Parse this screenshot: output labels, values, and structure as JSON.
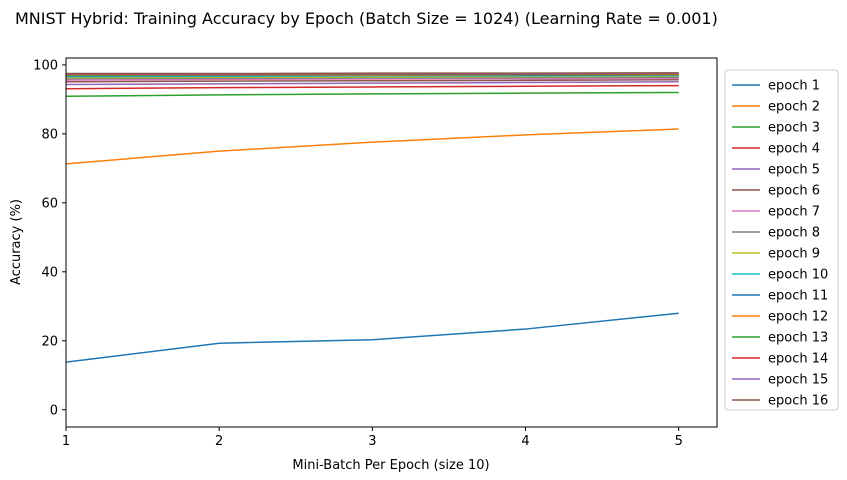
{
  "chart_data": {
    "type": "line",
    "title": "MNIST Hybrid: Training Accuracy by Epoch (Batch Size = 1024) (Learning Rate = 0.001)",
    "xlabel": "Mini-Batch Per Epoch (size 10)",
    "ylabel": "Accuracy (%)",
    "xlim": [
      1,
      5.25
    ],
    "ylim": [
      -5,
      102
    ],
    "x_ticks": [
      1,
      2,
      3,
      4,
      5
    ],
    "y_ticks": [
      0,
      20,
      40,
      60,
      80,
      100
    ],
    "grid": false,
    "legend_position": "outside-right",
    "x": [
      1,
      2,
      3,
      4,
      5
    ],
    "series": [
      {
        "name": "epoch 1",
        "color": "#1f77b4",
        "values": [
          13.8,
          19.3,
          20.3,
          23.4,
          28.0
        ]
      },
      {
        "name": "epoch 2",
        "color": "#ff7f0e",
        "values": [
          71.3,
          75.0,
          77.6,
          79.7,
          81.4
        ]
      },
      {
        "name": "epoch 3",
        "color": "#2ca02c",
        "values": [
          90.9,
          91.3,
          91.6,
          91.8,
          92.0
        ]
      },
      {
        "name": "epoch 4",
        "color": "#d62728",
        "values": [
          93.1,
          93.4,
          93.6,
          93.8,
          94.0
        ]
      },
      {
        "name": "epoch 5",
        "color": "#9467bd",
        "values": [
          94.3,
          94.5,
          94.7,
          94.9,
          95.1
        ]
      },
      {
        "name": "epoch 6",
        "color": "#8c564b",
        "values": [
          95.1,
          95.3,
          95.4,
          95.5,
          95.7
        ]
      },
      {
        "name": "epoch 7",
        "color": "#e377c2",
        "values": [
          95.6,
          95.8,
          95.9,
          96.0,
          96.1
        ]
      },
      {
        "name": "epoch 8",
        "color": "#7f7f7f",
        "values": [
          96.0,
          96.1,
          96.2,
          96.3,
          96.4
        ]
      },
      {
        "name": "epoch 9",
        "color": "#bcbd22",
        "values": [
          96.3,
          96.4,
          96.5,
          96.6,
          96.7
        ]
      },
      {
        "name": "epoch 10",
        "color": "#17becf",
        "values": [
          96.6,
          96.7,
          96.8,
          96.8,
          96.9
        ]
      },
      {
        "name": "epoch 11",
        "color": "#1f77b4",
        "values": [
          96.8,
          96.9,
          97.0,
          97.0,
          97.1
        ]
      },
      {
        "name": "epoch 12",
        "color": "#ff7f0e",
        "values": [
          97.0,
          97.1,
          97.1,
          97.2,
          97.2
        ]
      },
      {
        "name": "epoch 13",
        "color": "#2ca02c",
        "values": [
          97.1,
          97.2,
          97.3,
          97.3,
          97.4
        ]
      },
      {
        "name": "epoch 14",
        "color": "#d62728",
        "values": [
          97.3,
          97.3,
          97.4,
          97.4,
          97.5
        ]
      },
      {
        "name": "epoch 15",
        "color": "#9467bd",
        "values": [
          97.4,
          97.4,
          97.5,
          97.5,
          97.6
        ]
      },
      {
        "name": "epoch 16",
        "color": "#8c564b",
        "values": [
          97.5,
          97.5,
          97.6,
          97.6,
          97.7
        ]
      }
    ]
  }
}
